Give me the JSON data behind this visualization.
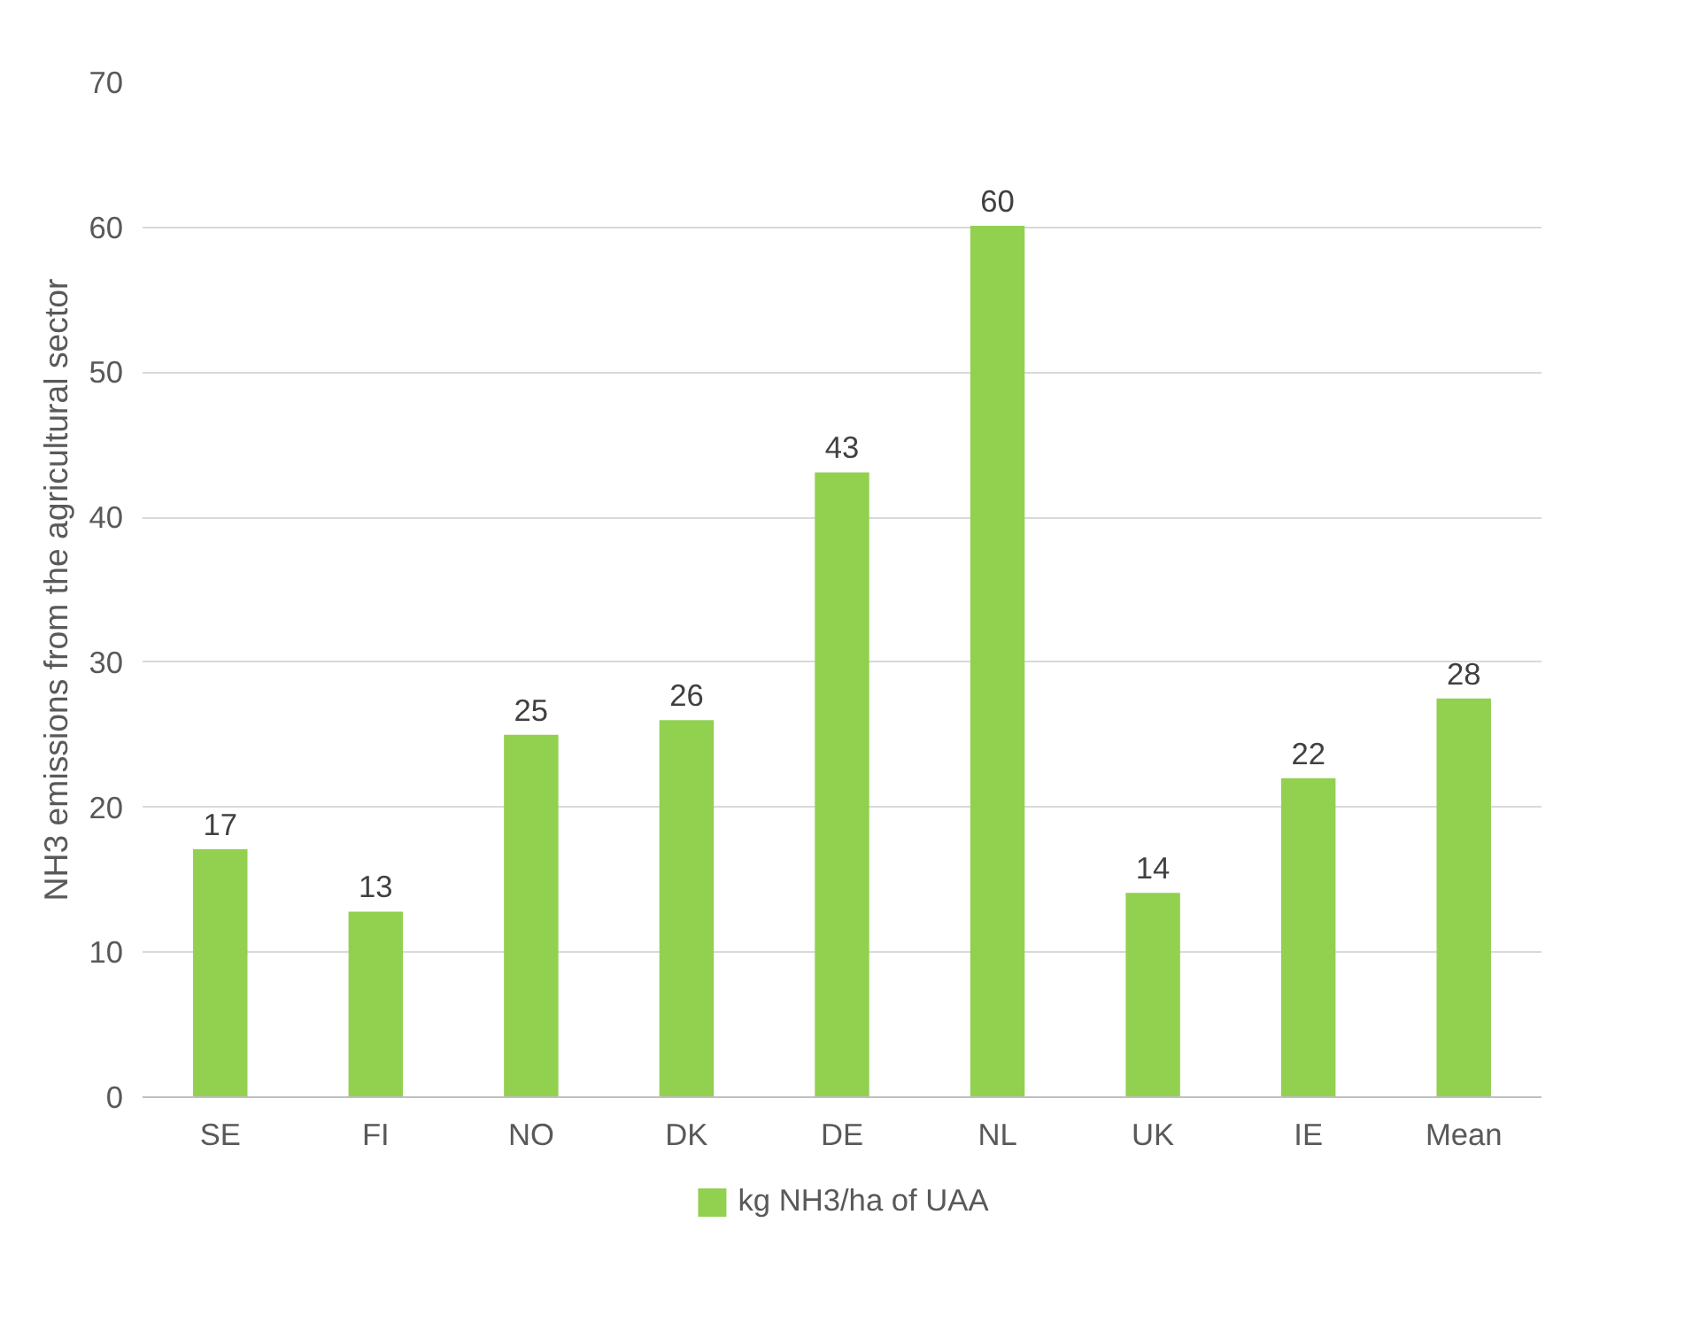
{
  "chart_data": {
    "type": "bar",
    "ylabel": "NH3 emissions from the agricultural sector",
    "categories": [
      "SE",
      "FI",
      "NO",
      "DK",
      "DE",
      "NL",
      "UK",
      "IE",
      "Mean"
    ],
    "series": [
      {
        "name": "kg NH3/ha of UAA",
        "color": "#92d050",
        "values": [
          17.1,
          12.8,
          25,
          26,
          43.1,
          60.1,
          14.1,
          22,
          27.5
        ],
        "value_labels": [
          "17",
          "13",
          "25",
          "26",
          "43",
          "60",
          "14",
          "22",
          "28"
        ]
      }
    ],
    "ylim": [
      0,
      70
    ],
    "yticks": [
      0,
      10,
      20,
      30,
      40,
      50,
      60,
      70
    ],
    "grid": "y",
    "legend": "bottom"
  }
}
